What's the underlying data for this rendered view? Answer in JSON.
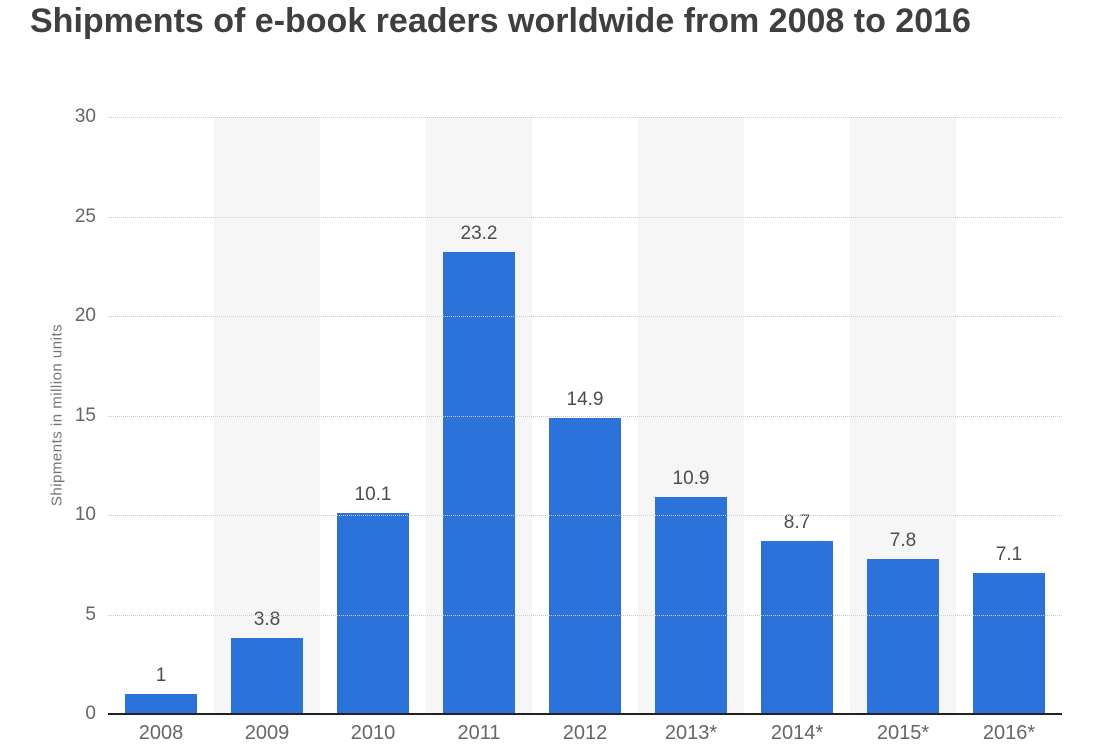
{
  "title": "Shipments of e-book readers worldwide from 2008 to 2016",
  "chart_data": {
    "type": "bar",
    "title": "Shipments of e-book readers worldwide from 2008 to 2016",
    "categories": [
      "2008",
      "2009",
      "2010",
      "2011",
      "2012",
      "2013*",
      "2014*",
      "2015*",
      "2016*"
    ],
    "values": [
      1,
      3.8,
      10.1,
      23.2,
      14.9,
      10.9,
      8.7,
      7.8,
      7.1
    ],
    "value_labels": [
      "1",
      "3.8",
      "10.1",
      "23.2",
      "14.9",
      "10.9",
      "8.7",
      "7.8",
      "7.1"
    ],
    "xlabel": "",
    "ylabel": "Shipments in million units",
    "ylim": [
      0,
      30
    ],
    "yticks": [
      0,
      5,
      10,
      15,
      20,
      25,
      30
    ],
    "grid": "horizontal-dotted",
    "legend": "none",
    "background_stripes": "alternating-columns"
  },
  "colors": {
    "bar": "#2c72db",
    "column_stripe": "#f6f6f6",
    "gridline": "#cccccc",
    "axis_line": "#222222",
    "tick_text": "#666666",
    "value_text": "#4d4d4d",
    "title_text": "#3f3f3f",
    "y_axis_title_text": "#757575",
    "background": "#ffffff"
  }
}
